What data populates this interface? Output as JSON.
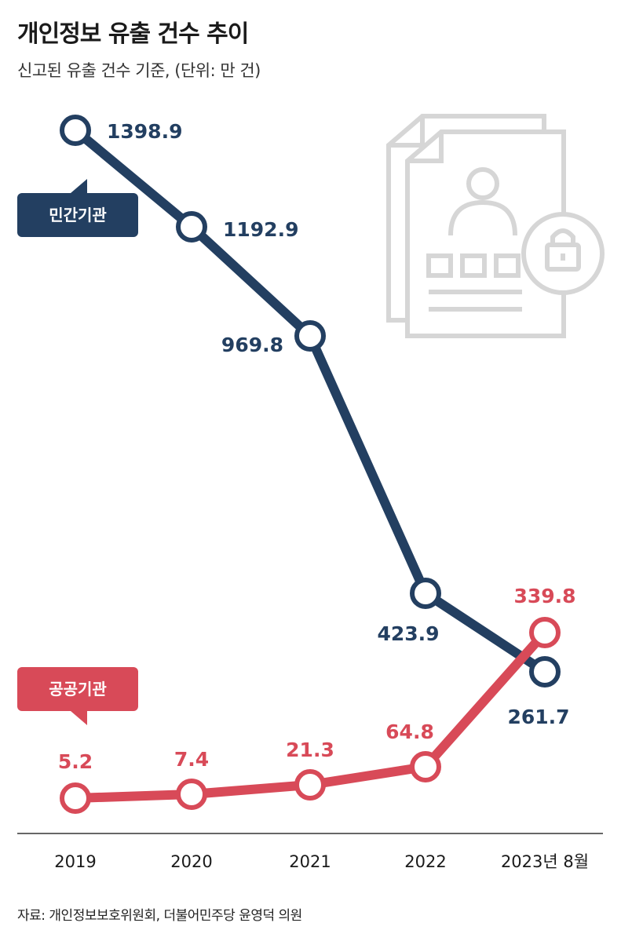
{
  "header": {
    "title": "개인정보 유출 건수 추이",
    "subtitle": "신고된 유출 건수 기준, (단위: 만 건)"
  },
  "footer": {
    "source": "자료: 개인정보보호위원회, 더불어민주당 윤영덕 의원"
  },
  "colors": {
    "private": "#233f61",
    "public": "#d84a58",
    "axis": "#333333",
    "icon": "#d6d6d6"
  },
  "chart_data": {
    "type": "line",
    "categories": [
      "2019",
      "2020",
      "2021",
      "2022",
      "2023년 8월"
    ],
    "series": [
      {
        "name": "민간기관",
        "values": [
          1398.9,
          1192.9,
          969.8,
          423.9,
          261.7
        ],
        "labels": [
          "1398.9",
          "1192.9",
          "969.8",
          "423.9",
          "261.7"
        ]
      },
      {
        "name": "공공기관",
        "values": [
          5.2,
          7.4,
          21.3,
          64.8,
          339.8
        ],
        "labels": [
          "5.2",
          "7.4",
          "21.3",
          "64.8",
          "339.8"
        ]
      }
    ],
    "title": "개인정보 유출 건수 추이",
    "subtitle": "신고된 유출 건수 기준, (단위: 만 건)",
    "grid": false,
    "legend": "inline tags"
  }
}
